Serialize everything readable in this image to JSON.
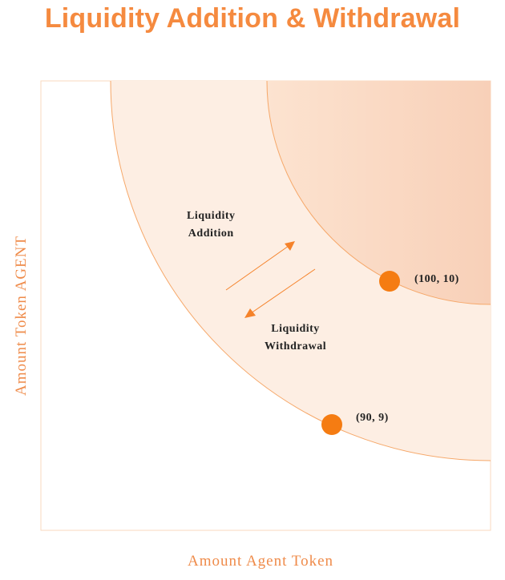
{
  "title": "Liquidity Addition & Withdrawal",
  "y_axis_label": "Amount Token AGENT",
  "x_axis_label": "Amount Agent Token",
  "annotations": {
    "addition": [
      "Liquidity",
      "Addition"
    ],
    "withdrawal": [
      "Liquidity",
      "Withdrawal"
    ]
  },
  "points": {
    "upper": "(100, 10)",
    "lower": "(90, 9)"
  },
  "colors": {
    "title": "#f58a3f",
    "axis_label": "#ef8b4a",
    "curve": "#f6a86a",
    "point": "#f57c12",
    "arrow": "#f5822a",
    "outer_fill": "#fdeee3",
    "inner_fill": "#f9cdb0"
  }
}
